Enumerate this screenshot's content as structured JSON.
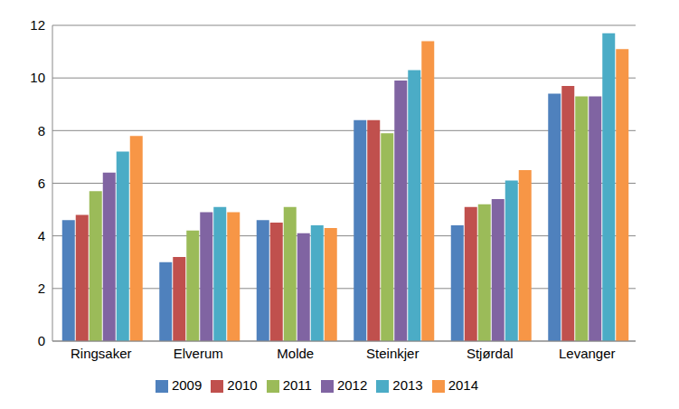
{
  "chart_data": {
    "type": "bar",
    "categories": [
      "Ringsaker",
      "Elverum",
      "Molde",
      "Steinkjer",
      "Stjørdal",
      "Levanger"
    ],
    "series": [
      {
        "name": "2009",
        "color": "#4f81bd",
        "values": [
          4.6,
          3.0,
          4.6,
          8.4,
          4.4,
          9.4
        ]
      },
      {
        "name": "2010",
        "color": "#c0504d",
        "values": [
          4.8,
          3.2,
          4.5,
          8.4,
          5.1,
          9.7
        ]
      },
      {
        "name": "2011",
        "color": "#9bbb59",
        "values": [
          5.7,
          4.2,
          5.1,
          7.9,
          5.2,
          9.3
        ]
      },
      {
        "name": "2012",
        "color": "#8064a2",
        "values": [
          6.4,
          4.9,
          4.1,
          9.9,
          5.4,
          9.3
        ]
      },
      {
        "name": "2013",
        "color": "#4bacc6",
        "values": [
          7.2,
          5.1,
          4.4,
          10.3,
          6.1,
          11.7
        ]
      },
      {
        "name": "2014",
        "color": "#f79646",
        "values": [
          7.8,
          4.9,
          4.3,
          11.4,
          6.5,
          11.1
        ]
      }
    ],
    "ylim": [
      0,
      12
    ],
    "yticks": [
      0,
      2,
      4,
      6,
      8,
      10,
      12
    ],
    "grid": true,
    "legend": "bottom"
  }
}
